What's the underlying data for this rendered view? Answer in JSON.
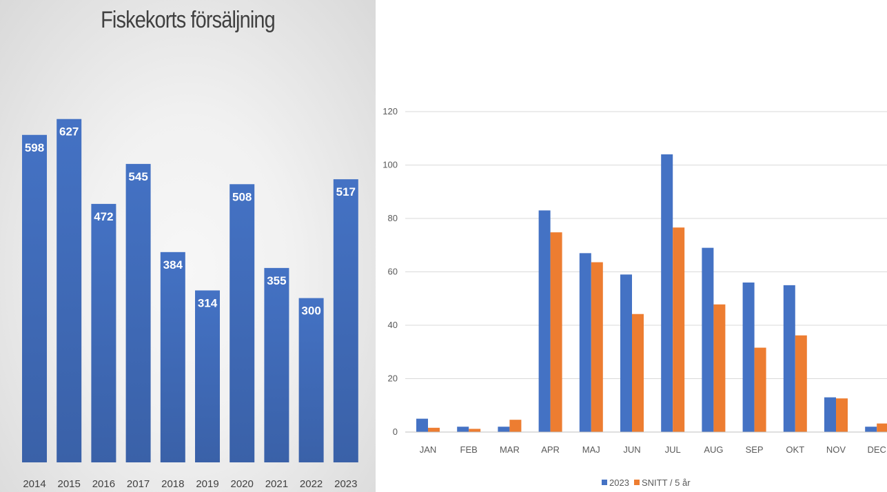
{
  "chart_data": [
    {
      "type": "bar",
      "title": "Fiskekorts försäljning",
      "categories": [
        "2014",
        "2015",
        "2016",
        "2017",
        "2018",
        "2019",
        "2020",
        "2021",
        "2022",
        "2023"
      ],
      "values": [
        598,
        627,
        472,
        545,
        384,
        314,
        508,
        355,
        300,
        517
      ],
      "data_labels": true,
      "grid": false,
      "color": "#4472C4"
    },
    {
      "type": "bar",
      "categories": [
        "JAN",
        "FEB",
        "MAR",
        "APR",
        "MAJ",
        "JUN",
        "JUL",
        "AUG",
        "SEP",
        "OKT",
        "NOV",
        "DEC"
      ],
      "series": [
        {
          "name": "2023",
          "values": [
            5,
            2,
            2,
            83,
            67,
            59,
            104,
            69,
            56,
            55,
            13,
            2
          ],
          "color": "#4472C4"
        },
        {
          "name": "SNITT / 5 år",
          "values": [
            1.6,
            1.2,
            4.6,
            74.8,
            63.6,
            44.2,
            76.6,
            47.8,
            31.6,
            36.2,
            12.6,
            3.2
          ],
          "color": "#ED7D31"
        }
      ],
      "ylim": [
        0,
        120
      ],
      "yticks": [
        0,
        20,
        40,
        60,
        80,
        100,
        120
      ],
      "grid": true,
      "legend": "bottom"
    }
  ]
}
